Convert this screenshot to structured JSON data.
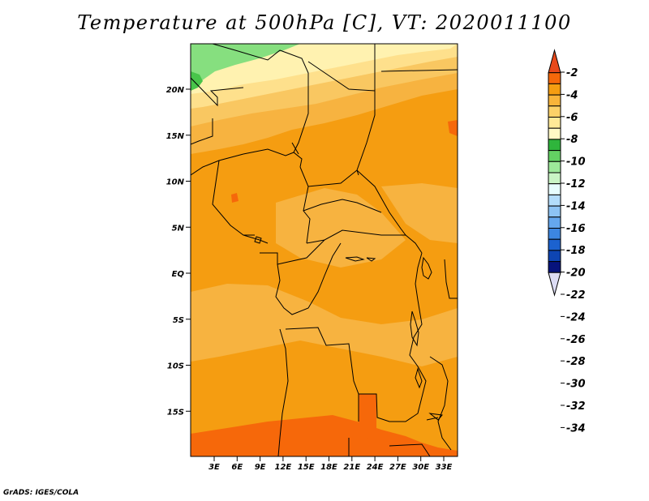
{
  "title": "Temperature at 500hPa [C], VT: 2020011100",
  "credit": "GrADS: IGES/COLA",
  "map": {
    "lat_labels": [
      "20N",
      "15N",
      "10N",
      "5N",
      "EQ",
      "5S",
      "10S",
      "15S"
    ],
    "lon_labels": [
      "3E",
      "6E",
      "9E",
      "12E",
      "15E",
      "18E",
      "21E",
      "24E",
      "27E",
      "30E",
      "33E"
    ]
  },
  "colorbar": {
    "labels": [
      "-2",
      "-4",
      "-6",
      "-8",
      "-10",
      "-12",
      "-14",
      "-16",
      "-18",
      "-20",
      "-22",
      "-24",
      "-26",
      "-28",
      "-30",
      "-32",
      "-34"
    ],
    "colors": [
      "#e8491b",
      "#f6680a",
      "#f59d11",
      "#f8b43a",
      "#fbd168",
      "#fee997",
      "#fff9c5",
      "#2fb53c",
      "#63d163",
      "#9de99a",
      "#c9f5c5",
      "#e7fdfd",
      "#b3ddfb",
      "#8dc3f4",
      "#65a7ee",
      "#3c86e1",
      "#1c62cf",
      "#0e45b3",
      "#07137c",
      "#dcdcf4"
    ]
  },
  "fill_colors": {
    "green_dark": "#48c54a",
    "green_light": "#86df7f",
    "pale_yellow": "#fff2b0",
    "light_yellow": "#fee08c",
    "yellow_orange": "#f9c761",
    "light_orange": "#f7b340",
    "orange": "#f59d11",
    "dark_orange": "#f6680a"
  }
}
